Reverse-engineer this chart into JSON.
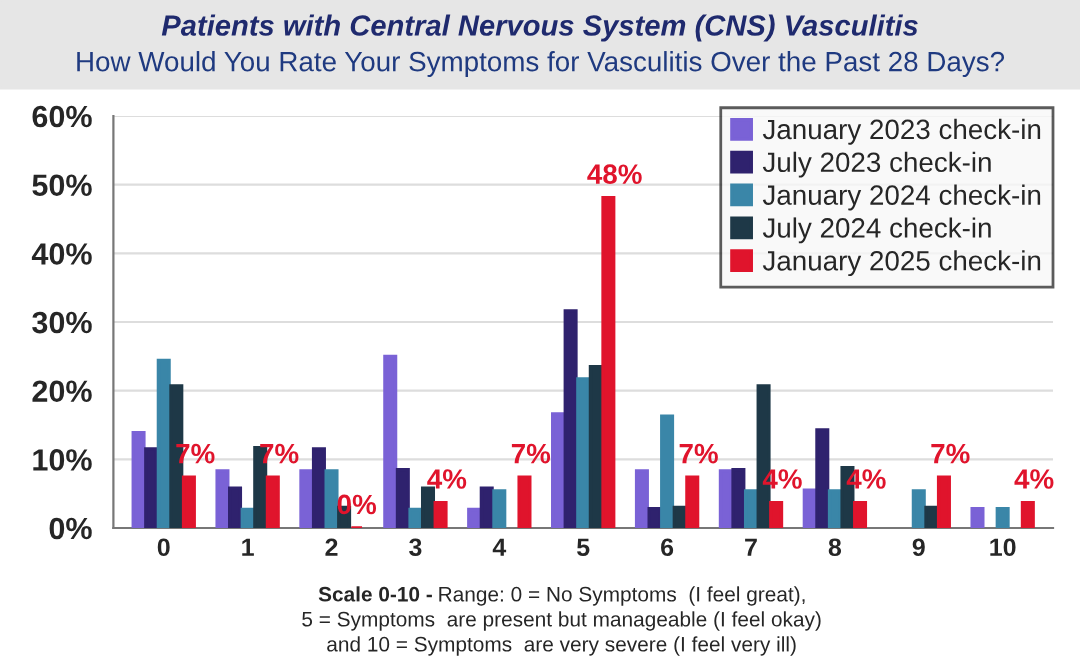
{
  "chart_data": {
    "type": "bar",
    "title": "Patients with Central Nervous System (CNS) Vasculitis",
    "subtitle": "How Would You Rate Your Symptoms for Vasculitis Over the Past 28 Days?",
    "categories": [
      "0",
      "1",
      "2",
      "3",
      "4",
      "5",
      "6",
      "7",
      "8",
      "9",
      "10"
    ],
    "series": [
      {
        "name": "January 2023 check-in",
        "color": "#7a62d6",
        "values": [
          13.9,
          8.3,
          8.3,
          25.0,
          2.7,
          16.6,
          8.3,
          8.3,
          5.5,
          null,
          2.8
        ]
      },
      {
        "name": "July 2023 check-in",
        "color": "#2f226e",
        "values": [
          11.5,
          5.8,
          11.5,
          8.5,
          5.8,
          31.6,
          2.8,
          8.5,
          14.3,
          null,
          null
        ]
      },
      {
        "name": "January 2024 check-in",
        "color": "#3a86a8",
        "values": [
          24.4,
          2.7,
          8.3,
          2.7,
          5.4,
          21.7,
          16.3,
          5.4,
          5.4,
          5.4,
          2.8
        ]
      },
      {
        "name": "July 2024 check-in",
        "color": "#1e3847",
        "values": [
          20.7,
          11.7,
          3.0,
          5.8,
          null,
          23.5,
          3.0,
          20.7,
          8.8,
          3.0,
          null
        ]
      },
      {
        "name": "January 2025 check-in",
        "color": "#e0142c",
        "values": [
          7.4,
          7.4,
          0,
          3.7,
          7.4,
          48.1,
          7.4,
          3.7,
          3.7,
          7.4,
          3.7
        ],
        "value_labels": [
          "7%",
          "7%",
          "0%",
          "4%",
          "7%",
          "48%",
          "7%",
          "4%",
          "4%",
          "7%",
          "4%"
        ]
      }
    ],
    "ylim": [
      0,
      60
    ],
    "yticks": [
      {
        "value": 0,
        "label": "0%"
      },
      {
        "value": 10,
        "label": "10%"
      },
      {
        "value": 20,
        "label": "20%"
      },
      {
        "value": 30,
        "label": "30%"
      },
      {
        "value": 40,
        "label": "40%"
      },
      {
        "value": 50,
        "label": "50%"
      },
      {
        "value": 60,
        "label": "60%"
      }
    ],
    "grid": "y",
    "legend": "top right",
    "annotations": [
      "Scale 0-10 -",
      "Range: 0 = No Symptoms  (I feel great),\n5 = Symptoms  are present but manageable (I feel okay)\nand 10 = Symptoms  are very severe (I feel very ill)"
    ]
  }
}
